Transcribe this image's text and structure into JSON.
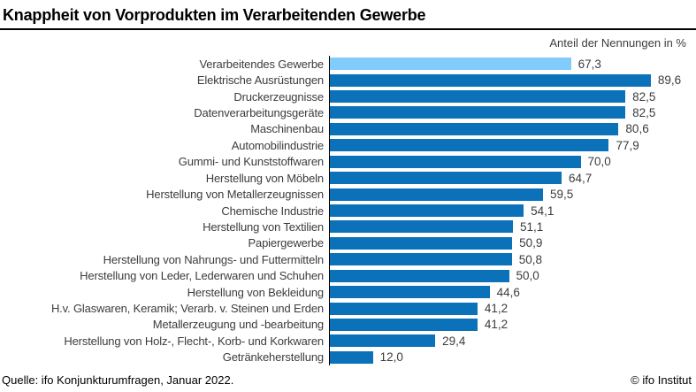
{
  "title": "Knappheit von Vorprodukten im Verarbeitenden Gewerbe",
  "subtitle": "Anteil der Nennungen in %",
  "footer": {
    "source": "Quelle: ifo Konjunkturumfragen, Januar 2022.",
    "copyright": "© ifo Institut"
  },
  "colors": {
    "bar": "#0b72ba",
    "highlight_bar": "#82ccfb",
    "axis": "#000000",
    "text": "#3c3c3c"
  },
  "chart_data": {
    "type": "bar",
    "orientation": "horizontal",
    "title": "Knappheit von Vorprodukten im Verarbeitenden Gewerbe",
    "xlabel": "Anteil der Nennungen in %",
    "xlim": [
      0,
      100
    ],
    "grid": false,
    "legend": false,
    "highlight_index": 0,
    "categories": [
      "Verarbeitendes Gewerbe",
      "Elektrische Ausrüstungen",
      "Druckerzeugnisse",
      "Datenverarbeitungsgeräte",
      "Maschinenbau",
      "Automobilindustrie",
      "Gummi- und Kunststoffwaren",
      "Herstellung von Möbeln",
      "Herstellung von Metallerzeugnissen",
      "Chemische Industrie",
      "Herstellung von Textilien",
      "Papiergewerbe",
      "Herstellung von Nahrungs- und Futtermitteln",
      "Herstellung von Leder, Lederwaren und Schuhen",
      "Herstellung von Bekleidung",
      "H.v. Glaswaren, Keramik; Verarb. v. Steinen und Erden",
      "Metallerzeugung und -bearbeitung",
      "Herstellung von Holz-, Flecht-, Korb- und Korkwaren",
      "Getränkeherstellung"
    ],
    "values": [
      67.3,
      89.6,
      82.5,
      82.5,
      80.6,
      77.9,
      70.0,
      64.7,
      59.5,
      54.1,
      51.1,
      50.9,
      50.8,
      50.0,
      44.6,
      41.2,
      41.2,
      29.4,
      12.0
    ],
    "value_labels": [
      "67,3",
      "89,6",
      "82,5",
      "82,5",
      "80,6",
      "77,9",
      "70,0",
      "64,7",
      "59,5",
      "54,1",
      "51,1",
      "50,9",
      "50,8",
      "50,0",
      "44,6",
      "41,2",
      "41,2",
      "29,4",
      "12,0"
    ]
  }
}
